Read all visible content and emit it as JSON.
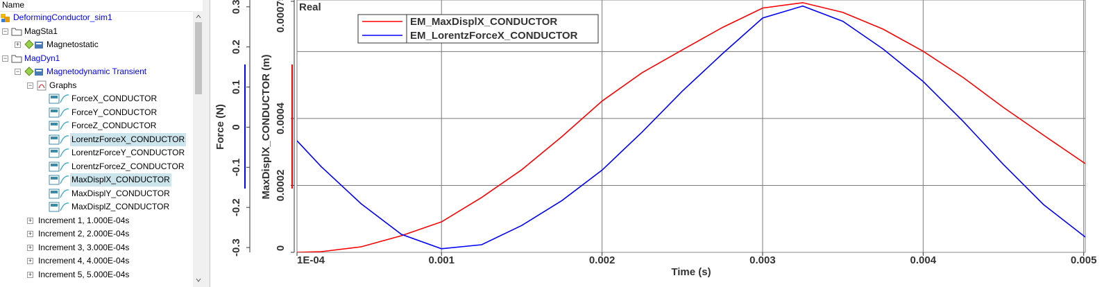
{
  "tree": {
    "header": "Name",
    "nodes": [
      {
        "label": "DeformingConductor_sim1",
        "active": true,
        "children": [
          {
            "label": "MagSta1",
            "expanded": true,
            "children": [
              {
                "label": "Magnetostatic",
                "expanded": false
              }
            ]
          },
          {
            "label": "MagDyn1",
            "active": true,
            "expanded": true,
            "children": [
              {
                "label": "Magnetodynamic Transient",
                "active": true,
                "expanded": true,
                "children": [
                  {
                    "label": "Graphs",
                    "expanded": true,
                    "children": [
                      {
                        "label": "ForceX_CONDUCTOR"
                      },
                      {
                        "label": "ForceY_CONDUCTOR"
                      },
                      {
                        "label": "ForceZ_CONDUCTOR"
                      },
                      {
                        "label": "LorentzForceX_CONDUCTOR",
                        "selected": true
                      },
                      {
                        "label": "LorentzForceY_CONDUCTOR"
                      },
                      {
                        "label": "LorentzForceZ_CONDUCTOR"
                      },
                      {
                        "label": "MaxDisplX_CONDUCTOR",
                        "selected": true
                      },
                      {
                        "label": "MaxDisplY_CONDUCTOR"
                      },
                      {
                        "label": "MaxDisplZ_CONDUCTOR"
                      }
                    ]
                  },
                  {
                    "label": "Increment 1, 1.000E-04s",
                    "expanded": false
                  },
                  {
                    "label": "Increment 2, 2.000E-04s",
                    "expanded": false
                  },
                  {
                    "label": "Increment 3, 3.000E-04s",
                    "expanded": false
                  },
                  {
                    "label": "Increment 4, 4.000E-04s",
                    "expanded": false
                  },
                  {
                    "label": "Increment 5, 5.000E-04s",
                    "expanded": false
                  }
                ]
              }
            ]
          }
        ]
      }
    ]
  },
  "chart_data": {
    "type": "line",
    "annotation": "Real",
    "x_label": "Time (s)",
    "y_label": "Force (N)",
    "y2_label": "MaxDisplX_CONDUCTOR (m)",
    "x": [
      0.0001,
      0.00025,
      0.0005,
      0.00075,
      0.001,
      0.00125,
      0.0015,
      0.00175,
      0.002,
      0.00225,
      0.0025,
      0.00275,
      0.003,
      0.00325,
      0.0035,
      0.00375,
      0.004,
      0.00425,
      0.0045,
      0.00475,
      0.00501
    ],
    "series": [
      {
        "name": "EM_MaxDisplX_CONDUCTOR",
        "color": "#ff0000",
        "axis": "y2",
        "values": [
          0,
          2.1e-06,
          1.66e-05,
          4.97e-05,
          9.12e-05,
          0.000164,
          0.000247,
          0.000346,
          0.000452,
          0.000537,
          0.000605,
          0.000672,
          0.00073,
          0.000746,
          0.000717,
          0.000667,
          0.000601,
          0.000522,
          0.000433,
          0.00035,
          0.000265
        ]
      },
      {
        "name": "EM_LorentzForceX_CONDUCTOR",
        "color": "#0000ff",
        "values": [
          -0.034,
          -0.098,
          -0.191,
          -0.267,
          -0.303,
          -0.293,
          -0.245,
          -0.183,
          -0.107,
          -0.012,
          0.09,
          0.183,
          0.272,
          0.302,
          0.264,
          0.195,
          0.114,
          0.014,
          -0.093,
          -0.193,
          -0.274
        ]
      }
    ],
    "xlim": [
      0.0001,
      0.00501
    ],
    "xticks": [
      {
        "value": 0.0001,
        "label": "1E-04"
      },
      0.001,
      0.002,
      0.003,
      0.004,
      0.005
    ],
    "ylim": [
      -0.312,
      0.317
    ],
    "yticks": [
      -0.3,
      -0.2,
      -0.1,
      0,
      0.1,
      0.2,
      0.3
    ],
    "y2lim": [
      0,
      0.000754
    ],
    "y2ticks": [
      0,
      0.0002,
      0.0004,
      0.00075
    ],
    "grid": true,
    "y2grid": [
      0.0002,
      0.0004,
      0.0006
    ]
  }
}
